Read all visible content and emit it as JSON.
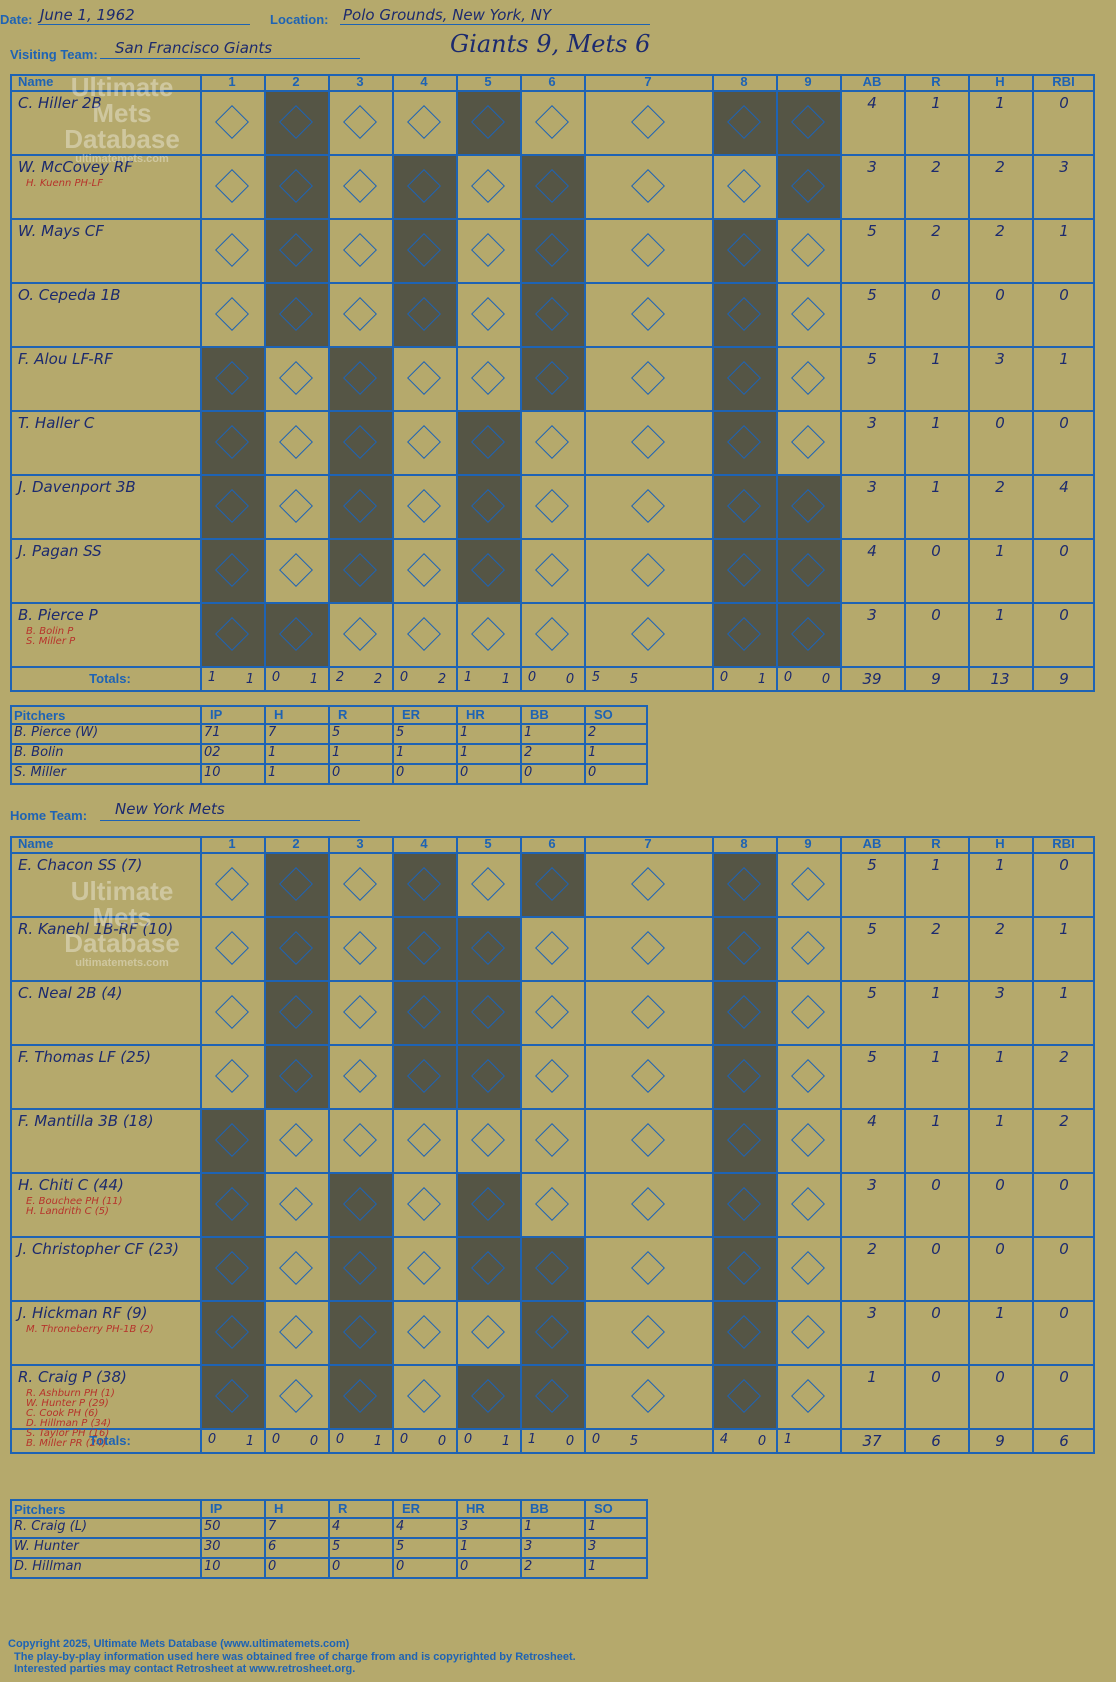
{
  "header": {
    "date_label": "Date:",
    "date": "June 1, 1962",
    "location_label": "Location:",
    "location": "Polo Grounds, New York, NY",
    "visiting_label": "Visiting Team:",
    "visiting_team": "San Francisco Giants",
    "score_title": "Giants 9, Mets 6",
    "home_label": "Home Team:",
    "home_team": "New York Mets"
  },
  "columns": [
    "Name",
    "1",
    "2",
    "3",
    "4",
    "5",
    "6",
    "7",
    "8",
    "9",
    "AB",
    "R",
    "H",
    "RBI"
  ],
  "totals_label": "Totals:",
  "watermark": [
    "Ultimate",
    "Mets",
    "Database",
    "ultimatemets.com"
  ],
  "visitors": {
    "players": [
      {
        "name": "C. Hiller 2B",
        "subs": [],
        "ab": "4",
        "r": "1",
        "h": "1",
        "rbi": "0"
      },
      {
        "name": "W. McCovey RF",
        "subs": [
          "H. Kuenn PH-LF"
        ],
        "ab": "3",
        "r": "2",
        "h": "2",
        "rbi": "3"
      },
      {
        "name": "W. Mays CF",
        "subs": [],
        "ab": "5",
        "r": "2",
        "h": "2",
        "rbi": "1"
      },
      {
        "name": "O. Cepeda 1B",
        "subs": [],
        "ab": "5",
        "r": "0",
        "h": "0",
        "rbi": "0"
      },
      {
        "name": "F. Alou LF-RF",
        "subs": [],
        "ab": "5",
        "r": "1",
        "h": "3",
        "rbi": "1"
      },
      {
        "name": "T. Haller C",
        "subs": [],
        "ab": "3",
        "r": "1",
        "h": "0",
        "rbi": "0"
      },
      {
        "name": "J. Davenport 3B",
        "subs": [],
        "ab": "3",
        "r": "1",
        "h": "2",
        "rbi": "4"
      },
      {
        "name": "J. Pagan SS",
        "subs": [],
        "ab": "4",
        "r": "0",
        "h": "1",
        "rbi": "0"
      },
      {
        "name": "B. Pierce P",
        "subs": [
          "B. Bolin P",
          "S. Miller P"
        ],
        "ab": "3",
        "r": "0",
        "h": "1",
        "rbi": "0"
      }
    ],
    "innings": [
      "1",
      "1",
      "0",
      "1",
      "2",
      "2",
      "0",
      "2",
      "1",
      "1",
      "0",
      "0",
      "5",
      "5",
      "0",
      "1",
      "0",
      "0"
    ],
    "totals": {
      "ab": "39",
      "r": "9",
      "h": "13",
      "rbi": "9"
    },
    "pitchers_label": "Pitchers",
    "pitch_cols": [
      "IP",
      "H",
      "R",
      "ER",
      "HR",
      "BB",
      "SO"
    ],
    "pitchers": [
      {
        "name": "B. Pierce (W)",
        "vals": [
          "71",
          "7",
          "5",
          "5",
          "1",
          "1",
          "2"
        ]
      },
      {
        "name": "B. Bolin",
        "vals": [
          "02",
          "1",
          "1",
          "1",
          "1",
          "2",
          "1"
        ]
      },
      {
        "name": "S. Miller",
        "vals": [
          "10",
          "1",
          "0",
          "0",
          "0",
          "0",
          "0"
        ]
      }
    ]
  },
  "home": {
    "players": [
      {
        "name": "E. Chacon SS (7)",
        "subs": [],
        "ab": "5",
        "r": "1",
        "h": "1",
        "rbi": "0"
      },
      {
        "name": "R. Kanehl 1B-RF (10)",
        "subs": [],
        "ab": "5",
        "r": "2",
        "h": "2",
        "rbi": "1"
      },
      {
        "name": "C. Neal 2B (4)",
        "subs": [],
        "ab": "5",
        "r": "1",
        "h": "3",
        "rbi": "1"
      },
      {
        "name": "F. Thomas LF (25)",
        "subs": [],
        "ab": "5",
        "r": "1",
        "h": "1",
        "rbi": "2"
      },
      {
        "name": "F. Mantilla 3B (18)",
        "subs": [],
        "ab": "4",
        "r": "1",
        "h": "1",
        "rbi": "2"
      },
      {
        "name": "H. Chiti C (44)",
        "subs": [
          "E. Bouchee PH (11)",
          "H. Landrith C (5)"
        ],
        "ab": "3",
        "r": "0",
        "h": "0",
        "rbi": "0"
      },
      {
        "name": "J. Christopher CF (23)",
        "subs": [],
        "ab": "2",
        "r": "0",
        "h": "0",
        "rbi": "0"
      },
      {
        "name": "J. Hickman RF (9)",
        "subs": [
          "M. Throneberry PH-1B (2)"
        ],
        "ab": "3",
        "r": "0",
        "h": "1",
        "rbi": "0"
      },
      {
        "name": "R. Craig P (38)",
        "subs": [
          "R. Ashburn PH (1)",
          "W. Hunter P (29)",
          "C. Cook PH (6)",
          "D. Hillman P (34)",
          "S. Taylor PH (16)",
          "B. Miller PR (24)"
        ],
        "ab": "1",
        "r": "0",
        "h": "0",
        "rbi": "0"
      }
    ],
    "innings": [
      "0",
      "1",
      "0",
      "0",
      "0",
      "1",
      "0",
      "0",
      "0",
      "1",
      "1",
      "0",
      "0",
      "5",
      "4",
      "0",
      "1"
    ],
    "totals": {
      "ab": "37",
      "r": "6",
      "h": "9",
      "rbi": "6"
    },
    "pitchers_label": "Pitchers",
    "pitch_cols": [
      "IP",
      "H",
      "R",
      "ER",
      "HR",
      "BB",
      "SO"
    ],
    "pitchers": [
      {
        "name": "R. Craig (L)",
        "vals": [
          "50",
          "7",
          "4",
          "4",
          "3",
          "1",
          "1"
        ]
      },
      {
        "name": "W. Hunter",
        "vals": [
          "30",
          "6",
          "5",
          "5",
          "1",
          "3",
          "3"
        ]
      },
      {
        "name": "D. Hillman",
        "vals": [
          "10",
          "0",
          "0",
          "0",
          "0",
          "2",
          "1"
        ]
      }
    ]
  },
  "footer": {
    "line1": "Copyright 2025, Ultimate Mets Database (www.ultimatemets.com)",
    "line2": "The play-by-play information used here was obtained free of charge from and is copyrighted by Retrosheet.",
    "line3": "Interested parties may contact Retrosheet at www.retrosheet.org."
  },
  "colors": {
    "background": "#b5a96c",
    "grid": "#1e63b4",
    "ink": "#1c2a6e",
    "dark_cell": "#555545",
    "sub_ink": "#b7332b"
  }
}
